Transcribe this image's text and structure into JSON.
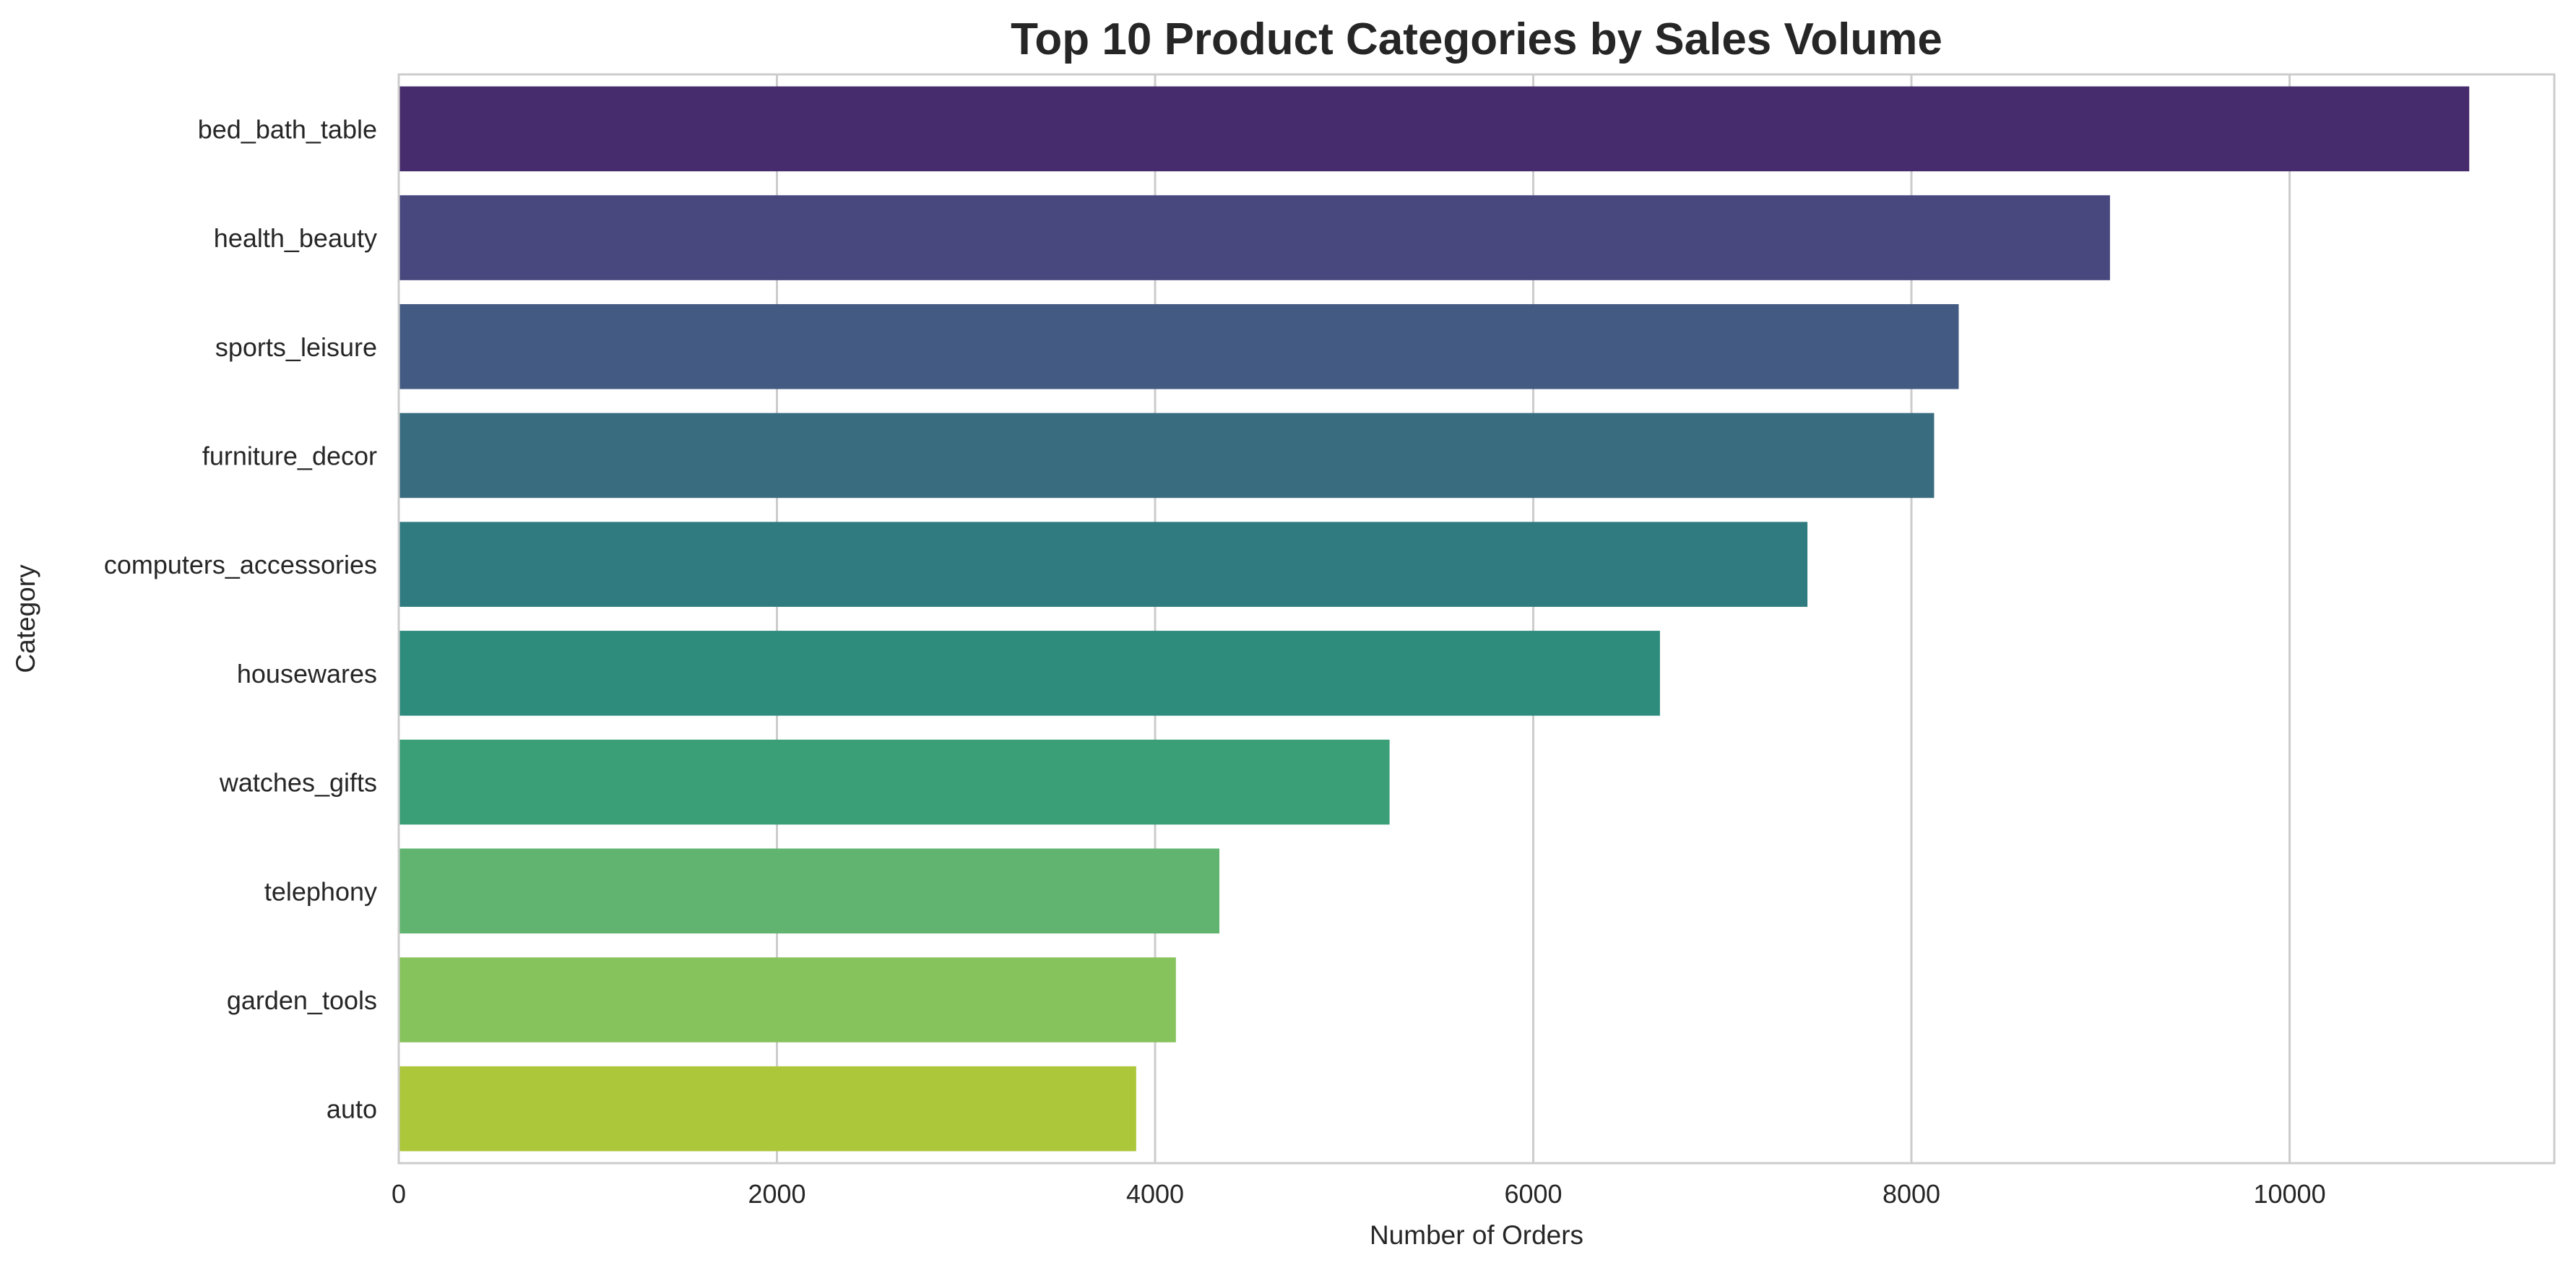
{
  "chart_data": {
    "type": "bar",
    "orientation": "horizontal",
    "title": "Top 10 Product Categories by Sales Volume",
    "xlabel": "Number of Orders",
    "ylabel": "Category",
    "categories": [
      "bed_bath_table",
      "health_beauty",
      "sports_leisure",
      "furniture_decor",
      "computers_accessories",
      "housewares",
      "watches_gifts",
      "telephony",
      "garden_tools",
      "auto"
    ],
    "values": [
      10950,
      9050,
      8250,
      8120,
      7450,
      6670,
      5240,
      4340,
      4110,
      3900
    ],
    "colors": [
      "#472c6d",
      "#48487e",
      "#435b82",
      "#3a6c80",
      "#307b80",
      "#2e8c7c",
      "#3a9f77",
      "#60b46f",
      "#87c35c",
      "#adc73a"
    ],
    "xlim": [
      0,
      11400
    ],
    "xticks": [
      0,
      2000,
      4000,
      6000,
      8000,
      10000
    ],
    "grid": true,
    "legend": "none"
  }
}
